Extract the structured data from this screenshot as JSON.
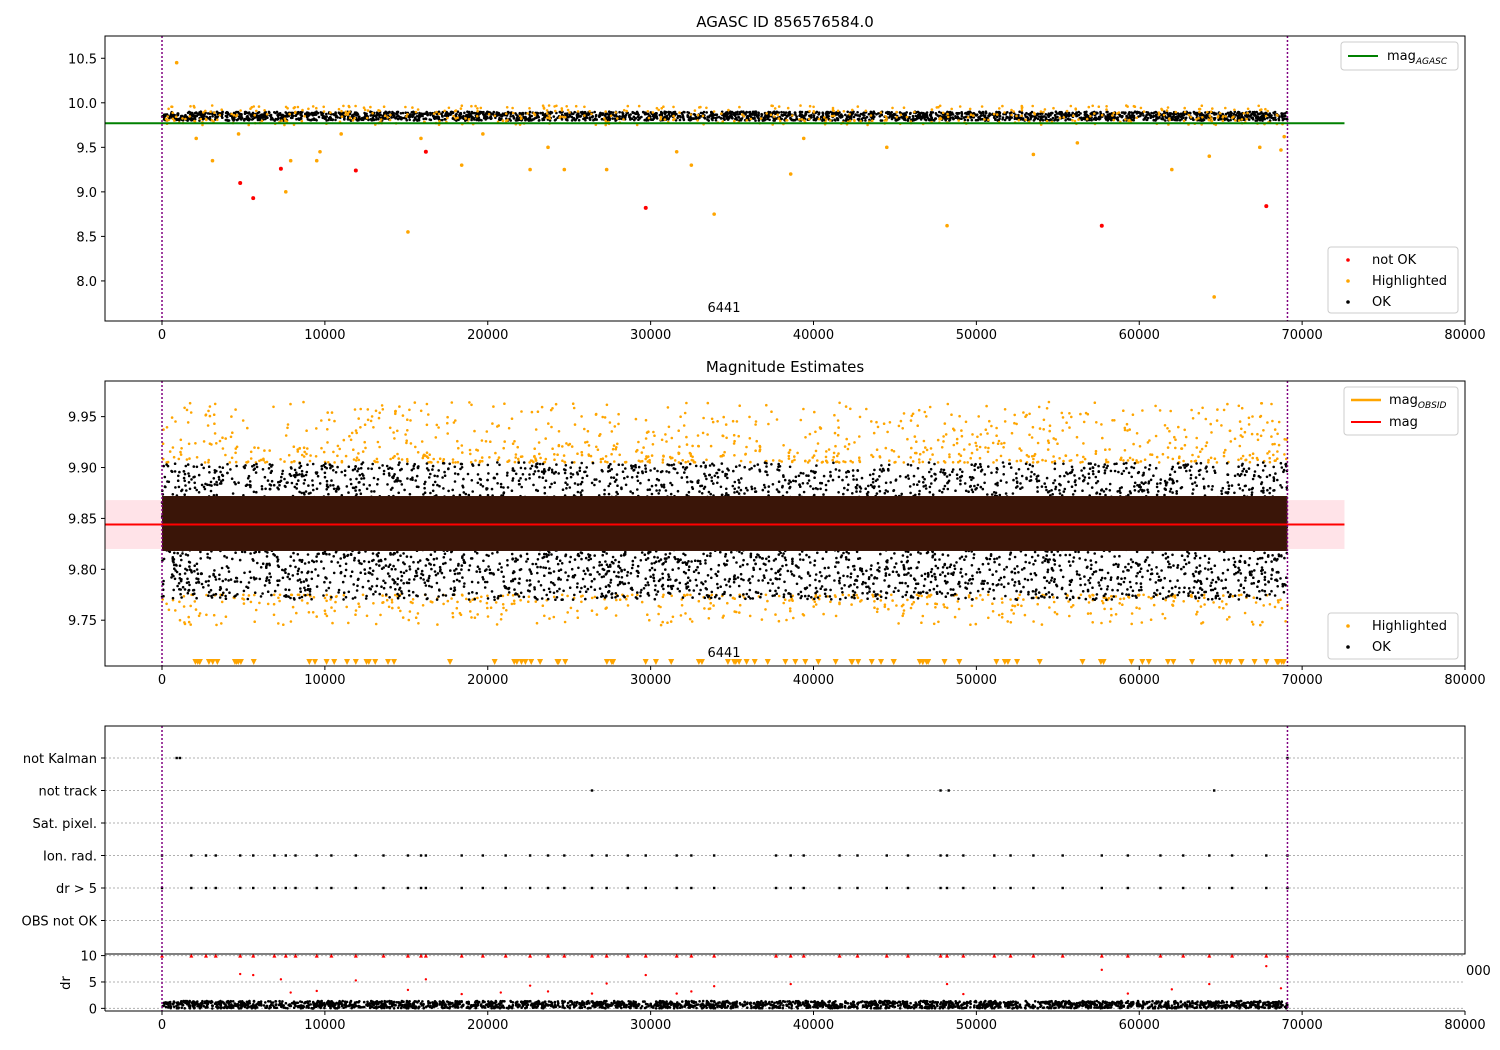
{
  "colors": {
    "not_ok": "#ff0000",
    "highlighted": "#ffa500",
    "ok": "#000000",
    "agasc_line": "#008000",
    "mag_line": "#ff0000",
    "obsid_line": "#ffa500",
    "obs_boundary": "#800080",
    "band": "#ffc0cb"
  },
  "chart_data": [
    {
      "type": "scatter",
      "title": "AGASC ID 856576584.0",
      "xlim": [
        -3500,
        80000
      ],
      "ylim": [
        7.55,
        10.75
      ],
      "xticks": [
        "0",
        "10000",
        "20000",
        "30000",
        "40000",
        "50000",
        "60000",
        "70000",
        "80000"
      ],
      "yticks": [
        "8.0",
        "8.5",
        "9.0",
        "9.5",
        "10.0",
        "10.5"
      ],
      "annotations": [
        {
          "text": "6441",
          "x": 34500,
          "y": 7.6
        }
      ],
      "obs_boundaries": [
        0,
        69100
      ],
      "legend_upper": {
        "placement": "top-right",
        "entries": [
          "mag_AGASC"
        ]
      },
      "legend_lower": {
        "placement": "bottom-right",
        "entries": [
          "not OK",
          "Highlighted",
          "OK"
        ]
      },
      "hlines": [
        {
          "name": "mag_AGASC",
          "y": 9.77,
          "xrange": [
            -3500,
            72600
          ],
          "color": "#008000"
        }
      ],
      "series": [
        {
          "name": "OK",
          "note": "dense band",
          "x_range": [
            0,
            69100
          ],
          "y_range": [
            9.8,
            9.9
          ]
        },
        {
          "name": "Highlighted",
          "points": [
            [
              900,
              10.45
            ],
            [
              2100,
              9.6
            ],
            [
              3100,
              9.35
            ],
            [
              4700,
              9.65
            ],
            [
              7600,
              9.0
            ],
            [
              7900,
              9.35
            ],
            [
              9500,
              9.35
            ],
            [
              9700,
              9.45
            ],
            [
              11000,
              9.65
            ],
            [
              15100,
              8.55
            ],
            [
              15900,
              9.6
            ],
            [
              18400,
              9.3
            ],
            [
              19700,
              9.65
            ],
            [
              22600,
              9.25
            ],
            [
              23700,
              9.5
            ],
            [
              24700,
              9.25
            ],
            [
              27300,
              9.25
            ],
            [
              31600,
              9.45
            ],
            [
              32500,
              9.3
            ],
            [
              33900,
              8.75
            ],
            [
              38600,
              9.2
            ],
            [
              39400,
              9.6
            ],
            [
              44500,
              9.5
            ],
            [
              48200,
              8.62
            ],
            [
              53500,
              9.42
            ],
            [
              56200,
              9.55
            ],
            [
              62000,
              9.25
            ],
            [
              64600,
              7.82
            ],
            [
              64300,
              9.4
            ],
            [
              67400,
              9.5
            ],
            [
              68700,
              9.47
            ],
            [
              68900,
              9.62
            ]
          ]
        },
        {
          "name": "not OK",
          "points": [
            [
              4800,
              9.1
            ],
            [
              5600,
              8.93
            ],
            [
              7300,
              9.26
            ],
            [
              11900,
              9.24
            ],
            [
              16200,
              9.45
            ],
            [
              29700,
              8.82
            ],
            [
              57700,
              8.62
            ],
            [
              67800,
              8.84
            ]
          ]
        }
      ]
    },
    {
      "type": "scatter",
      "title": "Magnitude Estimates",
      "xlim": [
        -3500,
        80000
      ],
      "ylim": [
        9.705,
        9.985
      ],
      "xticks": [
        "0",
        "10000",
        "20000",
        "30000",
        "40000",
        "50000",
        "60000",
        "70000",
        "80000"
      ],
      "yticks": [
        "9.75",
        "9.80",
        "9.85",
        "9.90",
        "9.95"
      ],
      "annotations": [
        {
          "text": "6441",
          "x": 34500,
          "y": 9.709
        }
      ],
      "obs_boundaries": [
        0,
        69100
      ],
      "legend_upper": {
        "placement": "top-right",
        "entries": [
          "mag_OBSID",
          "mag"
        ]
      },
      "legend_lower": {
        "placement": "bottom-right",
        "entries": [
          "Highlighted",
          "OK"
        ]
      },
      "hlines": [
        {
          "name": "mag",
          "y": 9.844,
          "xrange": [
            -3500,
            72600
          ],
          "color": "#ff0000"
        }
      ],
      "bands": [
        {
          "y": [
            9.82,
            9.868
          ],
          "xrange": [
            -3500,
            72600
          ]
        }
      ],
      "series": [
        {
          "name": "OK",
          "note": "dense band",
          "x_range": [
            0,
            69100
          ],
          "y_range": [
            9.77,
            9.905
          ]
        },
        {
          "name": "Highlighted",
          "note": "outliers above and below band",
          "x_range": [
            0,
            69100
          ],
          "y_range": [
            9.73,
            9.98
          ]
        }
      ]
    },
    {
      "type": "scatter",
      "title": "",
      "xlim": [
        -3500,
        80000
      ],
      "yticks": [
        "not Kalman",
        "not track",
        "Sat. pixel.",
        "Ion. rad.",
        "dr > 5",
        "OBS not OK"
      ],
      "obs_boundaries": [
        0,
        69100
      ],
      "flags": [
        {
          "name": "not Kalman",
          "x": [
            900,
            1100,
            69100
          ]
        },
        {
          "name": "not track",
          "x": [
            26400,
            47800,
            48300,
            64600
          ]
        },
        {
          "name": "Sat. pixel.",
          "x": []
        },
        {
          "name": "Ion. rad.",
          "x": [
            0,
            1800,
            2700,
            3300,
            4800,
            5600,
            6900,
            7600,
            8200,
            9500,
            10400,
            11900,
            13600,
            15100,
            15900,
            16200,
            18400,
            19700,
            21100,
            22600,
            23700,
            24700,
            26400,
            27300,
            28600,
            29700,
            31600,
            32500,
            33900,
            37700,
            38600,
            39400,
            41600,
            42700,
            44500,
            45800,
            47800,
            48200,
            49200,
            51100,
            52100,
            53500,
            55300,
            57700,
            59300,
            61300,
            62700,
            64300,
            65700,
            67800,
            69100
          ]
        },
        {
          "name": "dr > 5",
          "x": [
            0,
            1800,
            2700,
            3300,
            4800,
            5600,
            6900,
            7600,
            8200,
            9500,
            10400,
            11900,
            13600,
            15100,
            15900,
            16200,
            18400,
            19700,
            21100,
            22600,
            23700,
            24700,
            26400,
            27300,
            28600,
            29700,
            31600,
            32500,
            33900,
            37700,
            38600,
            39400,
            41600,
            42700,
            44500,
            45800,
            47800,
            48200,
            49200,
            51100,
            52100,
            53500,
            55300,
            57700,
            59300,
            61300,
            62700,
            64300,
            65700,
            67800,
            69100
          ]
        },
        {
          "name": "OBS not OK",
          "x": []
        }
      ]
    },
    {
      "type": "scatter",
      "title": "",
      "ylabel": "dr",
      "xlim": [
        -3500,
        80000
      ],
      "ylim": [
        -0.5,
        10.3
      ],
      "xticks": [
        "0",
        "10000",
        "20000",
        "30000",
        "40000",
        "50000",
        "60000",
        "70000",
        "80000"
      ],
      "yticks": [
        "0",
        "5",
        "10"
      ],
      "clipped_label": "000",
      "series": [
        {
          "name": "OK",
          "note": "dense band",
          "x_range": [
            0,
            69100
          ],
          "y_range": [
            0,
            1.4
          ]
        },
        {
          "name": "not OK",
          "note": "dr > 5 clipped at 10",
          "x": [
            0,
            1800,
            2700,
            3300,
            4800,
            5600,
            6900,
            7600,
            8200,
            9500,
            10400,
            11900,
            13600,
            15100,
            15900,
            16200,
            18400,
            19700,
            21100,
            22600,
            23700,
            24700,
            26400,
            27300,
            28600,
            29700,
            31600,
            32500,
            33900,
            37700,
            38600,
            39400,
            41600,
            42700,
            44500,
            45800,
            47800,
            48200,
            49200,
            51100,
            52100,
            53500,
            55300,
            57700,
            59300,
            61300,
            62700,
            64300,
            65700,
            67800,
            69100
          ],
          "y": 10
        },
        {
          "name": "low red",
          "points": [
            [
              4800,
              6.5
            ],
            [
              5600,
              6.3
            ],
            [
              7300,
              5.5
            ],
            [
              7900,
              3.0
            ],
            [
              9500,
              3.3
            ],
            [
              11900,
              5.3
            ],
            [
              15100,
              3.5
            ],
            [
              16200,
              5.5
            ],
            [
              18400,
              2.7
            ],
            [
              20800,
              3.0
            ],
            [
              22600,
              4.3
            ],
            [
              23700,
              3.2
            ],
            [
              26400,
              2.8
            ],
            [
              27300,
              4.7
            ],
            [
              29700,
              6.3
            ],
            [
              31600,
              2.8
            ],
            [
              32500,
              3.2
            ],
            [
              33900,
              4.2
            ],
            [
              38600,
              4.6
            ],
            [
              48200,
              4.6
            ],
            [
              49200,
              2.7
            ],
            [
              57700,
              7.3
            ],
            [
              59300,
              2.8
            ],
            [
              62000,
              3.6
            ],
            [
              64300,
              4.6
            ],
            [
              67800,
              8.0
            ],
            [
              68700,
              3.8
            ]
          ]
        }
      ]
    }
  ]
}
